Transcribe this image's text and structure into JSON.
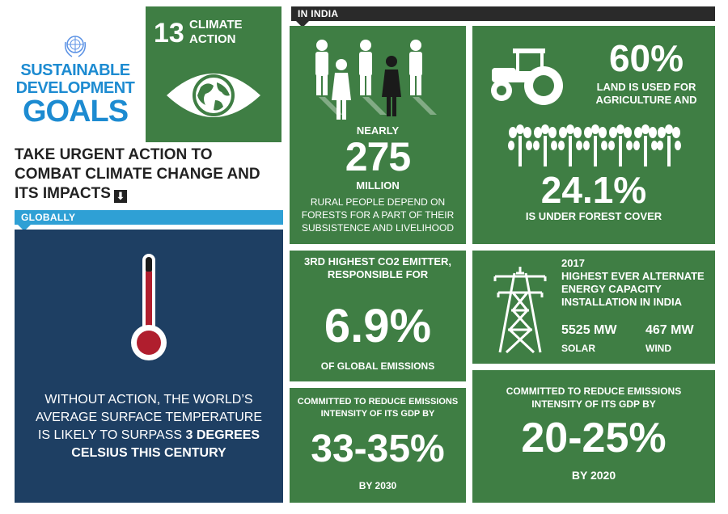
{
  "logo": {
    "line1": "SUSTAINABLE",
    "line2": "DEVELOPMENT",
    "line3": "GOALS",
    "emblem_icon": "un-emblem-icon"
  },
  "goal": {
    "number": "13",
    "name_line1": "CLIMATE",
    "name_line2": "ACTION",
    "icon": "eye-globe-icon",
    "color": "#3f7e44"
  },
  "headline": {
    "text": "TAKE URGENT ACTION TO COMBAT CLIMATE CHANGE AND ITS IMPACTS",
    "arrow": "⬇"
  },
  "globally": {
    "label": "GLOBALLY",
    "text_part1": "WITHOUT ACTION, THE WORLD’S AVERAGE SURFACE TEMPERATURE IS LIKELY TO SURPASS ",
    "text_bold": "3 DEGREES CELSIUS THIS CENTURY",
    "icon": "thermometer-icon",
    "colors": {
      "bar": "#2fa0d5",
      "panel": "#1e3f63"
    }
  },
  "india": {
    "label": "IN INDIA",
    "forest_people": {
      "prefix": "NEARLY",
      "value": "275",
      "unit": "MILLION",
      "text": "RURAL PEOPLE DEPEND ON FORESTS FOR A PART OF THEIR SUBSISTENCE AND LIVELIHOOD",
      "icon": "people-icon"
    },
    "land": {
      "value": "60%",
      "text": "LAND IS USED FOR AGRICULTURE AND",
      "forest_value": "24.1%",
      "forest_text": "IS UNDER FOREST COVER",
      "icons": [
        "tractor-icon",
        "trees-icon"
      ]
    },
    "emitter": {
      "head": "3RD HIGHEST CO2 EMITTER, RESPONSIBLE FOR",
      "value": "6.9%",
      "foot": "OF GLOBAL EMISSIONS"
    },
    "energy": {
      "year": "2017",
      "text": "HIGHEST EVER ALTERNATE ENERGY CAPACITY INSTALLATION IN INDIA",
      "solar_value": "5525 MW",
      "solar_label": "SOLAR",
      "wind_value": "467 MW",
      "wind_label": "WIND",
      "icon": "power-tower-icon"
    },
    "emissions_2030": {
      "head": "COMMITTED TO REDUCE EMISSIONS INTENSITY OF ITS GDP BY",
      "value": "33-35%",
      "foot": "BY 2030"
    },
    "emissions_2020": {
      "head": "COMMITTED TO REDUCE EMISSIONS INTENSITY OF ITS GDP BY",
      "value": "20-25%",
      "foot": "BY 2020"
    }
  }
}
